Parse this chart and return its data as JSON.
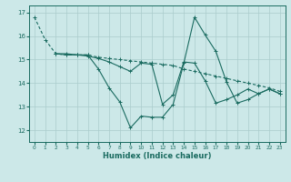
{
  "bg_color": "#cce8e8",
  "grid_color": "#aacccc",
  "line_color": "#1a6b60",
  "xlabel": "Humidex (Indice chaleur)",
  "xlim": [
    -0.5,
    23.5
  ],
  "ylim": [
    11.5,
    17.3
  ],
  "yticks": [
    12,
    13,
    14,
    15,
    16,
    17
  ],
  "xticks": [
    0,
    1,
    2,
    3,
    4,
    5,
    6,
    7,
    8,
    9,
    10,
    11,
    12,
    13,
    14,
    15,
    16,
    17,
    18,
    19,
    20,
    21,
    22,
    23
  ],
  "line1_x": [
    0,
    1,
    2,
    3,
    4,
    5,
    6,
    7,
    8,
    9,
    10,
    11,
    12,
    13,
    14,
    15,
    16,
    17,
    18,
    19,
    20,
    21,
    22,
    23
  ],
  "line1_y": [
    16.8,
    15.85,
    15.25,
    15.2,
    15.2,
    15.2,
    15.1,
    15.05,
    15.0,
    14.95,
    14.9,
    14.85,
    14.8,
    14.75,
    14.6,
    14.5,
    14.4,
    14.3,
    14.2,
    14.1,
    14.0,
    13.9,
    13.8,
    13.65
  ],
  "line2_x": [
    2,
    3,
    4,
    5,
    6,
    7,
    8,
    9,
    10,
    11,
    12,
    13,
    14,
    15,
    16,
    17,
    18,
    19,
    20,
    21,
    22,
    23
  ],
  "line2_y": [
    15.25,
    15.25,
    15.2,
    15.2,
    14.6,
    13.8,
    13.2,
    12.1,
    12.6,
    12.55,
    12.55,
    13.1,
    14.85,
    16.8,
    16.05,
    15.35,
    14.05,
    13.15,
    13.3,
    13.55,
    13.75,
    13.55
  ],
  "line3_x": [
    2,
    3,
    4,
    5,
    6,
    7,
    8,
    9,
    10,
    11,
    12,
    13,
    14,
    15,
    16,
    17,
    18,
    19,
    20,
    21,
    22,
    23
  ],
  "line3_y": [
    15.25,
    15.2,
    15.2,
    15.15,
    15.05,
    14.9,
    14.7,
    14.5,
    14.85,
    14.8,
    13.1,
    13.5,
    14.9,
    14.85,
    14.1,
    13.15,
    13.3,
    13.5,
    13.75,
    13.55,
    13.75,
    13.55
  ]
}
